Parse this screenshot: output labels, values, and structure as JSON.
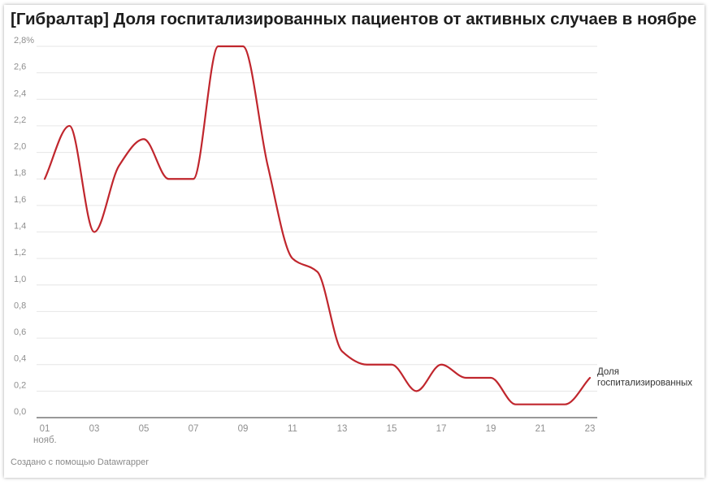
{
  "title": "[Гибралтар] Доля госпитализированных пациентов от активных случаев в ноябре",
  "footer": "Создано с помощью Datawrapper",
  "chart_data": {
    "type": "line",
    "title": "[Гибралтар] Доля госпитализированных пациентов от активных случаев в ноябре",
    "xlabel": "",
    "ylabel": "",
    "x": [
      1,
      2,
      3,
      4,
      5,
      6,
      7,
      8,
      9,
      10,
      11,
      12,
      13,
      14,
      15,
      16,
      17,
      18,
      19,
      20,
      21,
      22,
      23
    ],
    "xlim": [
      1,
      23
    ],
    "ylim": [
      0,
      2.8
    ],
    "grid": true,
    "x_ticks": [
      {
        "x": 1,
        "label": "01",
        "sublabel": "нояб."
      },
      {
        "x": 3,
        "label": "03"
      },
      {
        "x": 5,
        "label": "05"
      },
      {
        "x": 7,
        "label": "07"
      },
      {
        "x": 9,
        "label": "09"
      },
      {
        "x": 11,
        "label": "11"
      },
      {
        "x": 13,
        "label": "13"
      },
      {
        "x": 15,
        "label": "15"
      },
      {
        "x": 17,
        "label": "17"
      },
      {
        "x": 19,
        "label": "19"
      },
      {
        "x": 21,
        "label": "21"
      },
      {
        "x": 23,
        "label": "23"
      }
    ],
    "y_ticks": [
      {
        "y": 0.0,
        "label": "0,0"
      },
      {
        "y": 0.2,
        "label": "0,2"
      },
      {
        "y": 0.4,
        "label": "0,4"
      },
      {
        "y": 0.6,
        "label": "0,6"
      },
      {
        "y": 0.8,
        "label": "0,8"
      },
      {
        "y": 1.0,
        "label": "1,0"
      },
      {
        "y": 1.2,
        "label": "1,2"
      },
      {
        "y": 1.4,
        "label": "1,4"
      },
      {
        "y": 1.6,
        "label": "1,6"
      },
      {
        "y": 1.8,
        "label": "1,8"
      },
      {
        "y": 2.0,
        "label": "2,0"
      },
      {
        "y": 2.2,
        "label": "2,2"
      },
      {
        "y": 2.4,
        "label": "2,4"
      },
      {
        "y": 2.6,
        "label": "2,6"
      },
      {
        "y": 2.8,
        "label": "2,8%"
      }
    ],
    "series": [
      {
        "name": "Доля госпитализированных",
        "label_lines": [
          "Доля",
          "госпитализированных"
        ],
        "color": "#c0262d",
        "values": [
          1.8,
          2.2,
          1.4,
          1.9,
          2.1,
          1.8,
          1.8,
          2.8,
          2.8,
          1.9,
          1.2,
          1.1,
          0.5,
          0.4,
          0.4,
          0.2,
          0.4,
          0.3,
          0.3,
          0.1,
          0.1,
          0.1,
          0.3
        ]
      }
    ]
  }
}
